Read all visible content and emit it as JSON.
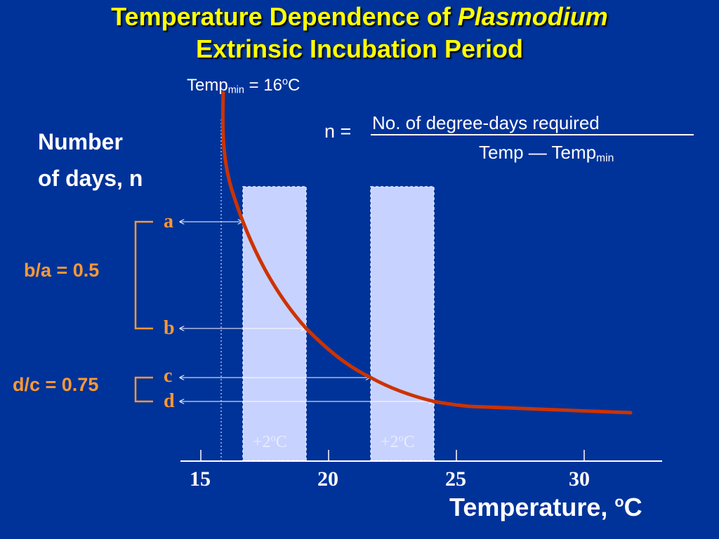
{
  "title": {
    "line1_prefix": "Temperature Dependence of ",
    "line1_italic": "Plasmodium",
    "line2": "Extrinsic Incubation Period"
  },
  "temp_min_label": {
    "prefix": "Temp",
    "sub": "min",
    "suffix": " = 16",
    "sup": "o",
    "unit": "C"
  },
  "formula": {
    "lhs": "n =",
    "numerator": "No. of degree-days required",
    "denominator_prefix": "Temp — Temp",
    "denominator_sub": "min"
  },
  "y_label": {
    "line1": "Number",
    "line2": "of days, n"
  },
  "x_label": {
    "text": "Temperature, ",
    "sup": "o",
    "unit": "C"
  },
  "x_ticks": [
    "15",
    "20",
    "25",
    "30"
  ],
  "points": {
    "a": "a",
    "b": "b",
    "c": "c",
    "d": "d"
  },
  "ratios": {
    "ba": "b/a = 0.5",
    "dc": "d/c = 0.75"
  },
  "bands": [
    {
      "label_prefix": "+2",
      "label_sup": "o",
      "label_unit": "C"
    },
    {
      "label_prefix": "+2",
      "label_sup": "o",
      "label_unit": "C"
    }
  ],
  "colors": {
    "background": "#003399",
    "title": "#ffff00",
    "curve": "#cc3300",
    "accent": "#ff9933",
    "band": "#c8d2ff"
  }
}
